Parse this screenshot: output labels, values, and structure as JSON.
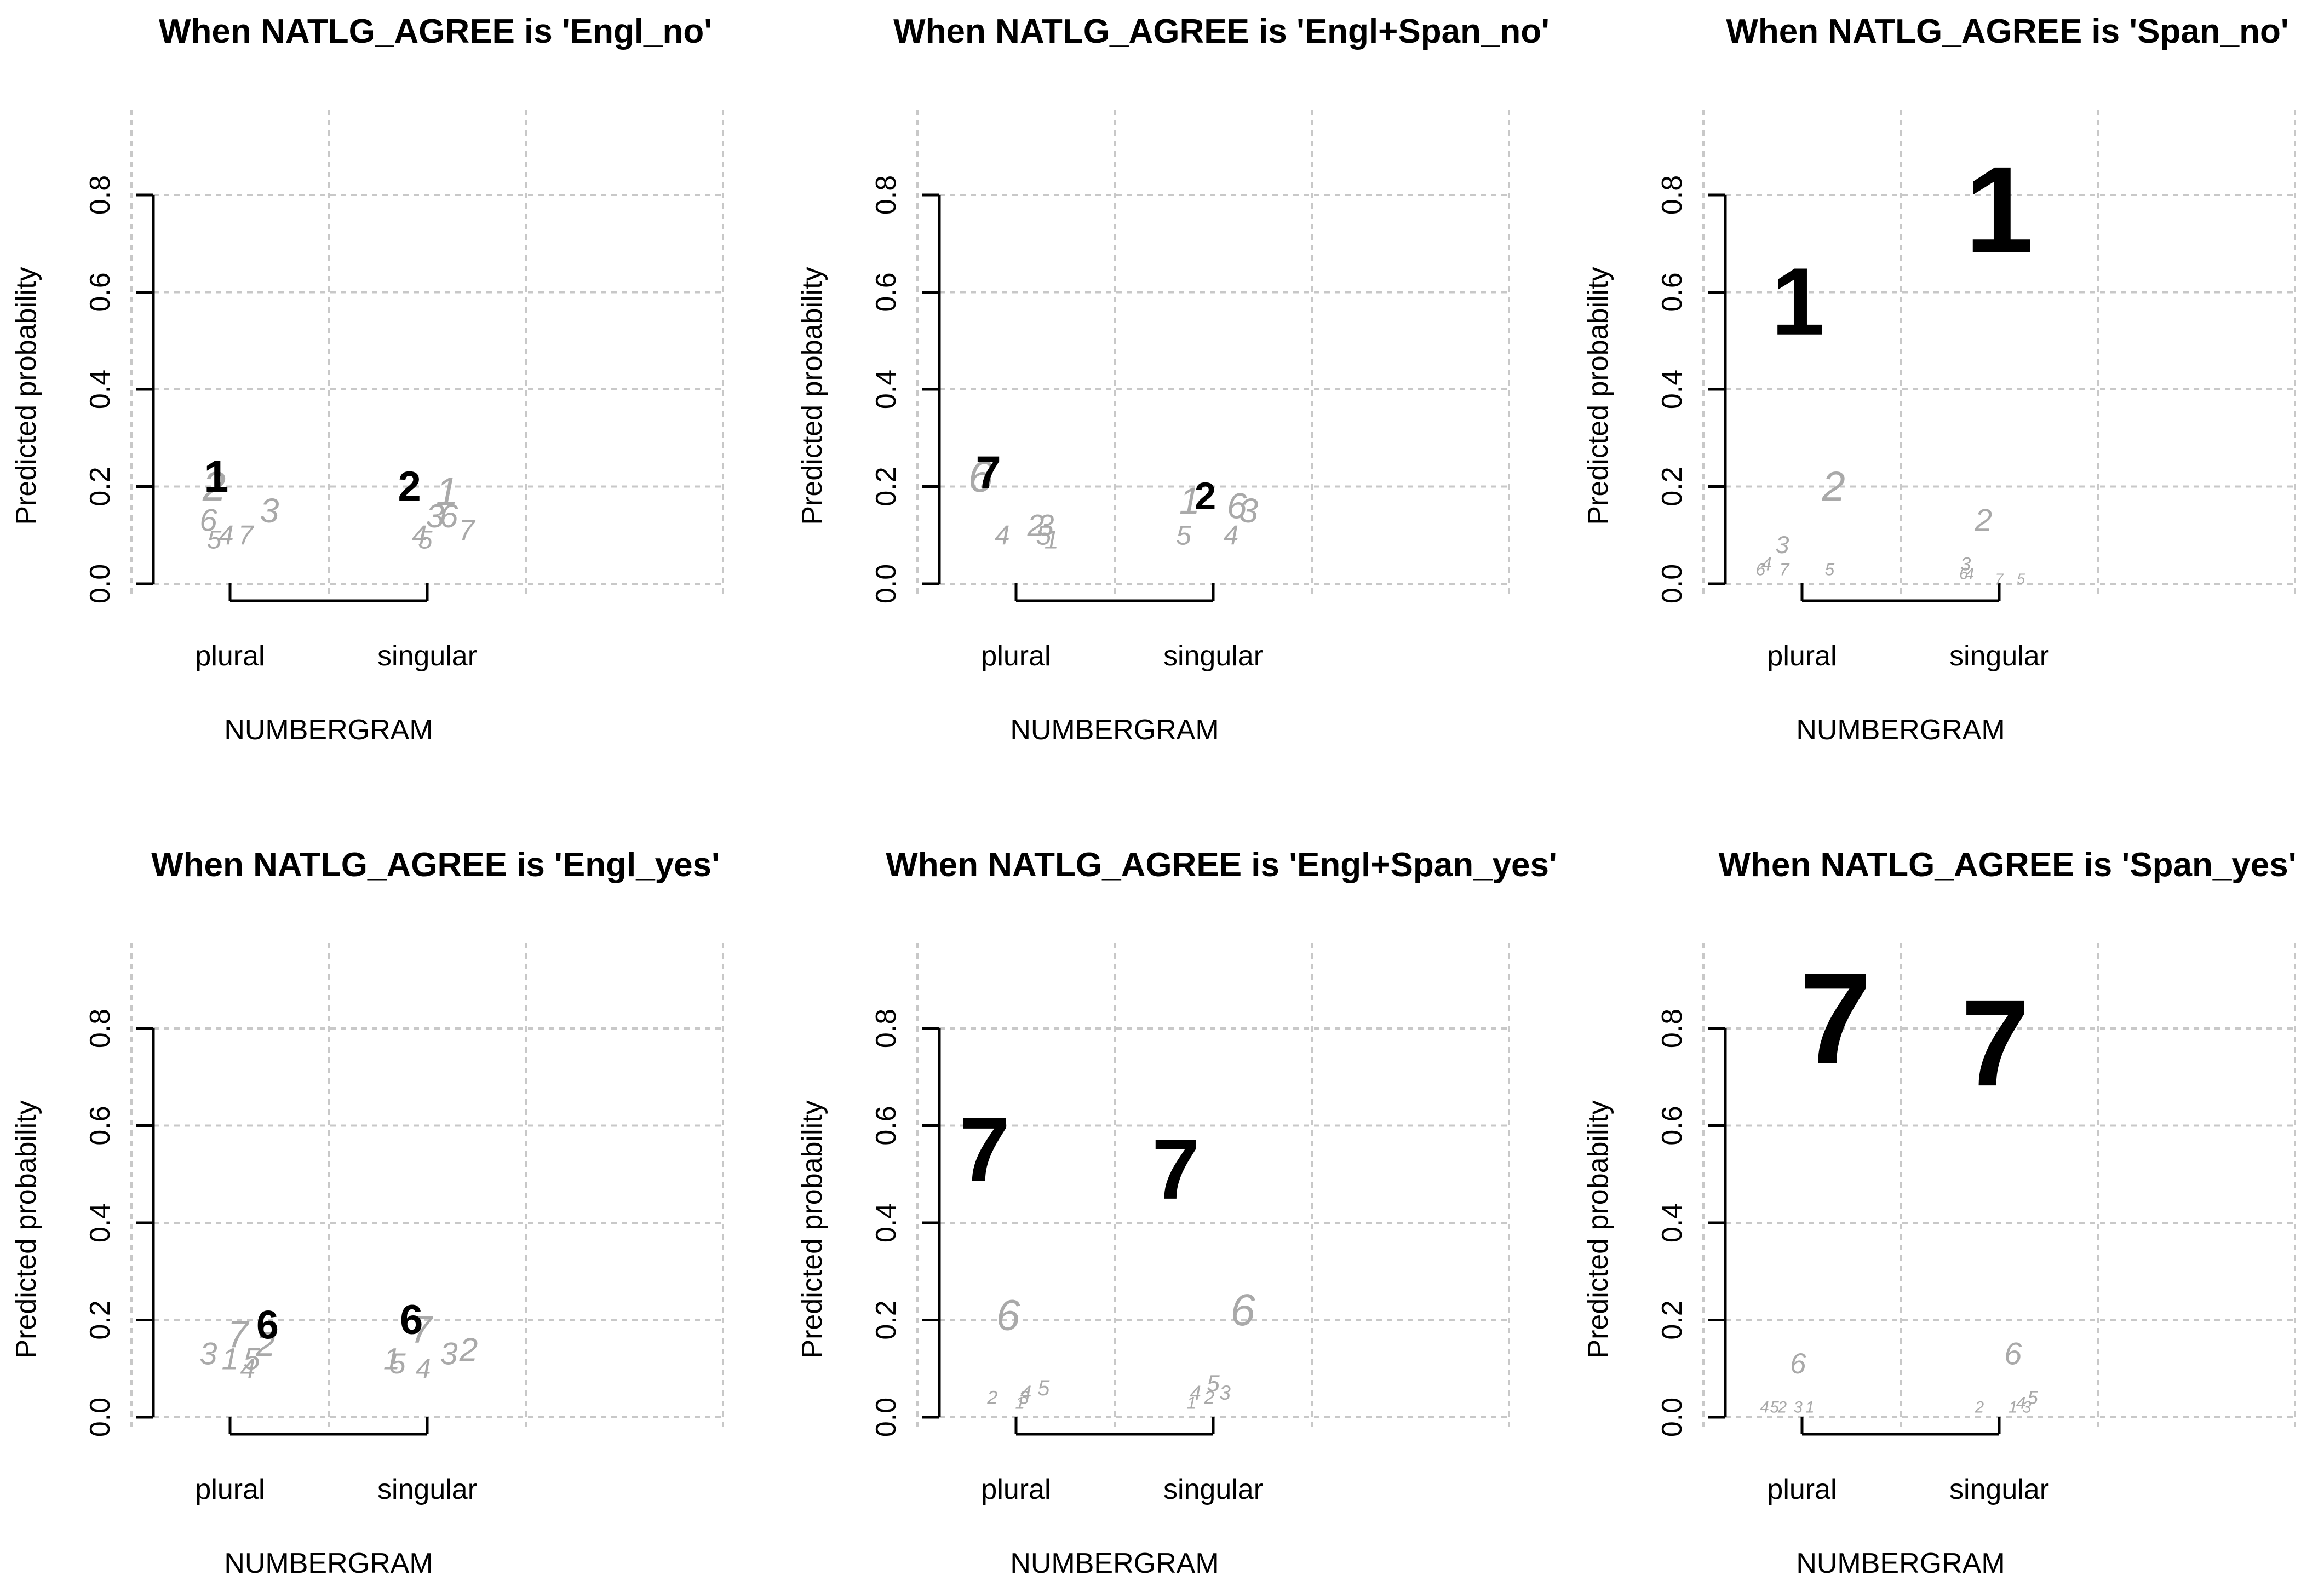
{
  "chart_data": [
    {
      "type": "scatter",
      "title": "When NATLG_AGREE is 'Engl_no'",
      "xlabel": "NUMBERGRAM",
      "ylabel": "Predicted probability",
      "categories": [
        "plural",
        "singular"
      ],
      "ylim": [
        0.0,
        0.8
      ],
      "yticks": [
        "0.0",
        "0.2",
        "0.4",
        "0.6",
        "0.8"
      ],
      "grid": true,
      "points": [
        {
          "label": "1",
          "category": "plural",
          "offset": -0.07,
          "y": 0.22,
          "emphasis": true
        },
        {
          "label": "2",
          "category": "plural",
          "offset": -0.08,
          "y": 0.2,
          "emphasis": false
        },
        {
          "label": "6",
          "category": "plural",
          "offset": -0.11,
          "y": 0.13,
          "emphasis": false
        },
        {
          "label": "5",
          "category": "plural",
          "offset": -0.08,
          "y": 0.09,
          "emphasis": false
        },
        {
          "label": "4",
          "category": "plural",
          "offset": -0.02,
          "y": 0.1,
          "emphasis": false
        },
        {
          "label": "7",
          "category": "plural",
          "offset": 0.08,
          "y": 0.1,
          "emphasis": false
        },
        {
          "label": "3",
          "category": "plural",
          "offset": 0.2,
          "y": 0.15,
          "emphasis": false
        },
        {
          "label": "2",
          "category": "singular",
          "offset": -0.09,
          "y": 0.2,
          "emphasis": true
        },
        {
          "label": "1",
          "category": "singular",
          "offset": 0.1,
          "y": 0.19,
          "emphasis": false
        },
        {
          "label": "3",
          "category": "singular",
          "offset": 0.04,
          "y": 0.14,
          "emphasis": false
        },
        {
          "label": "6",
          "category": "singular",
          "offset": 0.11,
          "y": 0.14,
          "emphasis": false
        },
        {
          "label": "4",
          "category": "singular",
          "offset": -0.04,
          "y": 0.1,
          "emphasis": false
        },
        {
          "label": "5",
          "category": "singular",
          "offset": -0.01,
          "y": 0.09,
          "emphasis": false
        },
        {
          "label": "7",
          "category": "singular",
          "offset": 0.2,
          "y": 0.11,
          "emphasis": false
        }
      ]
    },
    {
      "type": "scatter",
      "title": "When NATLG_AGREE is 'Engl+Span_no'",
      "xlabel": "NUMBERGRAM",
      "ylabel": "Predicted probability",
      "categories": [
        "plural",
        "singular"
      ],
      "ylim": [
        0.0,
        0.8
      ],
      "yticks": [
        "0.0",
        "0.2",
        "0.4",
        "0.6",
        "0.8"
      ],
      "grid": true,
      "points": [
        {
          "label": "7",
          "category": "plural",
          "offset": -0.14,
          "y": 0.23,
          "emphasis": true
        },
        {
          "label": "6",
          "category": "plural",
          "offset": -0.18,
          "y": 0.22,
          "emphasis": false
        },
        {
          "label": "4",
          "category": "plural",
          "offset": -0.07,
          "y": 0.1,
          "emphasis": false
        },
        {
          "label": "2",
          "category": "plural",
          "offset": 0.1,
          "y": 0.12,
          "emphasis": false
        },
        {
          "label": "3",
          "category": "plural",
          "offset": 0.15,
          "y": 0.12,
          "emphasis": false
        },
        {
          "label": "5",
          "category": "plural",
          "offset": 0.14,
          "y": 0.1,
          "emphasis": false
        },
        {
          "label": "1",
          "category": "plural",
          "offset": 0.18,
          "y": 0.09,
          "emphasis": false
        },
        {
          "label": "1",
          "category": "singular",
          "offset": -0.12,
          "y": 0.17,
          "emphasis": false
        },
        {
          "label": "2",
          "category": "singular",
          "offset": -0.04,
          "y": 0.18,
          "emphasis": true
        },
        {
          "label": "5",
          "category": "singular",
          "offset": -0.15,
          "y": 0.1,
          "emphasis": false
        },
        {
          "label": "6",
          "category": "singular",
          "offset": 0.12,
          "y": 0.16,
          "emphasis": false
        },
        {
          "label": "3",
          "category": "singular",
          "offset": 0.18,
          "y": 0.15,
          "emphasis": false
        },
        {
          "label": "4",
          "category": "singular",
          "offset": 0.09,
          "y": 0.1,
          "emphasis": false
        }
      ]
    },
    {
      "type": "scatter",
      "title": "When NATLG_AGREE is 'Span_no'",
      "xlabel": "NUMBERGRAM",
      "ylabel": "Predicted probability",
      "categories": [
        "plural",
        "singular"
      ],
      "ylim": [
        0.0,
        0.8
      ],
      "yticks": [
        "0.0",
        "0.2",
        "0.4",
        "0.6",
        "0.8"
      ],
      "grid": true,
      "points": [
        {
          "label": "1",
          "category": "plural",
          "offset": -0.02,
          "y": 0.58,
          "emphasis": true
        },
        {
          "label": "2",
          "category": "plural",
          "offset": 0.16,
          "y": 0.2,
          "emphasis": false
        },
        {
          "label": "3",
          "category": "plural",
          "offset": -0.1,
          "y": 0.08,
          "emphasis": false
        },
        {
          "label": "6",
          "category": "plural",
          "offset": -0.21,
          "y": 0.03,
          "emphasis": false
        },
        {
          "label": "4",
          "category": "plural",
          "offset": -0.18,
          "y": 0.04,
          "emphasis": false
        },
        {
          "label": "7",
          "category": "plural",
          "offset": -0.09,
          "y": 0.03,
          "emphasis": false
        },
        {
          "label": "5",
          "category": "plural",
          "offset": 0.14,
          "y": 0.03,
          "emphasis": false
        },
        {
          "label": "1",
          "category": "singular",
          "offset": 0.0,
          "y": 0.77,
          "emphasis": true
        },
        {
          "label": "2",
          "category": "singular",
          "offset": -0.08,
          "y": 0.13,
          "emphasis": false
        },
        {
          "label": "3",
          "category": "singular",
          "offset": -0.17,
          "y": 0.04,
          "emphasis": false
        },
        {
          "label": "6",
          "category": "singular",
          "offset": -0.18,
          "y": 0.02,
          "emphasis": false
        },
        {
          "label": "4",
          "category": "singular",
          "offset": -0.15,
          "y": 0.02,
          "emphasis": false
        },
        {
          "label": "7",
          "category": "singular",
          "offset": 0.0,
          "y": 0.01,
          "emphasis": false
        },
        {
          "label": "5",
          "category": "singular",
          "offset": 0.11,
          "y": 0.01,
          "emphasis": false
        }
      ]
    },
    {
      "type": "scatter",
      "title": "When NATLG_AGREE is 'Engl_yes'",
      "xlabel": "NUMBERGRAM",
      "ylabel": "Predicted probability",
      "categories": [
        "plural",
        "singular"
      ],
      "ylim": [
        0.0,
        0.8
      ],
      "yticks": [
        "0.0",
        "0.2",
        "0.4",
        "0.6",
        "0.8"
      ],
      "grid": true,
      "points": [
        {
          "label": "6",
          "category": "plural",
          "offset": 0.19,
          "y": 0.19,
          "emphasis": true
        },
        {
          "label": "7",
          "category": "plural",
          "offset": 0.04,
          "y": 0.17,
          "emphasis": false
        },
        {
          "label": "2",
          "category": "plural",
          "offset": 0.18,
          "y": 0.15,
          "emphasis": false
        },
        {
          "label": "3",
          "category": "plural",
          "offset": -0.11,
          "y": 0.13,
          "emphasis": false
        },
        {
          "label": "1",
          "category": "plural",
          "offset": 0.0,
          "y": 0.12,
          "emphasis": false
        },
        {
          "label": "5",
          "category": "plural",
          "offset": 0.11,
          "y": 0.12,
          "emphasis": false
        },
        {
          "label": "4",
          "category": "plural",
          "offset": 0.09,
          "y": 0.1,
          "emphasis": false
        },
        {
          "label": "6",
          "category": "singular",
          "offset": -0.08,
          "y": 0.2,
          "emphasis": true
        },
        {
          "label": "7",
          "category": "singular",
          "offset": -0.03,
          "y": 0.18,
          "emphasis": false
        },
        {
          "label": "3",
          "category": "singular",
          "offset": 0.11,
          "y": 0.13,
          "emphasis": false
        },
        {
          "label": "2",
          "category": "singular",
          "offset": 0.21,
          "y": 0.14,
          "emphasis": false
        },
        {
          "label": "1",
          "category": "singular",
          "offset": -0.18,
          "y": 0.12,
          "emphasis": false
        },
        {
          "label": "5",
          "category": "singular",
          "offset": -0.15,
          "y": 0.11,
          "emphasis": false
        },
        {
          "label": "4",
          "category": "singular",
          "offset": -0.02,
          "y": 0.1,
          "emphasis": false
        }
      ]
    },
    {
      "type": "scatter",
      "title": "When NATLG_AGREE is 'Engl+Span_yes'",
      "xlabel": "NUMBERGRAM",
      "ylabel": "Predicted probability",
      "categories": [
        "plural",
        "singular"
      ],
      "ylim": [
        0.0,
        0.8
      ],
      "yticks": [
        "0.0",
        "0.2",
        "0.4",
        "0.6",
        "0.8"
      ],
      "grid": true,
      "points": [
        {
          "label": "7",
          "category": "plural",
          "offset": -0.16,
          "y": 0.55,
          "emphasis": true
        },
        {
          "label": "6",
          "category": "plural",
          "offset": -0.04,
          "y": 0.21,
          "emphasis": false
        },
        {
          "label": "2",
          "category": "plural",
          "offset": -0.12,
          "y": 0.04,
          "emphasis": false
        },
        {
          "label": "1",
          "category": "plural",
          "offset": 0.02,
          "y": 0.03,
          "emphasis": false
        },
        {
          "label": "3",
          "category": "plural",
          "offset": 0.04,
          "y": 0.04,
          "emphasis": false
        },
        {
          "label": "4",
          "category": "plural",
          "offset": 0.05,
          "y": 0.05,
          "emphasis": false
        },
        {
          "label": "5",
          "category": "plural",
          "offset": 0.14,
          "y": 0.06,
          "emphasis": false
        },
        {
          "label": "7",
          "category": "singular",
          "offset": -0.19,
          "y": 0.51,
          "emphasis": true
        },
        {
          "label": "6",
          "category": "singular",
          "offset": 0.15,
          "y": 0.22,
          "emphasis": false
        },
        {
          "label": "5",
          "category": "singular",
          "offset": 0.0,
          "y": 0.07,
          "emphasis": false
        },
        {
          "label": "4",
          "category": "singular",
          "offset": -0.09,
          "y": 0.05,
          "emphasis": false
        },
        {
          "label": "2",
          "category": "singular",
          "offset": -0.02,
          "y": 0.04,
          "emphasis": false
        },
        {
          "label": "3",
          "category": "singular",
          "offset": 0.06,
          "y": 0.05,
          "emphasis": false
        },
        {
          "label": "1",
          "category": "singular",
          "offset": -0.11,
          "y": 0.03,
          "emphasis": false
        }
      ]
    },
    {
      "type": "scatter",
      "title": "When NATLG_AGREE is 'Span_yes'",
      "xlabel": "NUMBERGRAM",
      "ylabel": "Predicted probability",
      "categories": [
        "plural",
        "singular"
      ],
      "ylim": [
        0.0,
        0.8
      ],
      "yticks": [
        "0.0",
        "0.2",
        "0.4",
        "0.6",
        "0.8"
      ],
      "grid": true,
      "points": [
        {
          "label": "7",
          "category": "plural",
          "offset": 0.17,
          "y": 0.82,
          "emphasis": true
        },
        {
          "label": "6",
          "category": "plural",
          "offset": -0.02,
          "y": 0.11,
          "emphasis": false
        },
        {
          "label": "4",
          "category": "plural",
          "offset": -0.19,
          "y": 0.02,
          "emphasis": false
        },
        {
          "label": "5",
          "category": "plural",
          "offset": -0.14,
          "y": 0.02,
          "emphasis": false
        },
        {
          "label": "2",
          "category": "plural",
          "offset": -0.1,
          "y": 0.02,
          "emphasis": false
        },
        {
          "label": "3",
          "category": "plural",
          "offset": -0.02,
          "y": 0.02,
          "emphasis": false
        },
        {
          "label": "1",
          "category": "plural",
          "offset": 0.04,
          "y": 0.02,
          "emphasis": false
        },
        {
          "label": "7",
          "category": "singular",
          "offset": -0.02,
          "y": 0.77,
          "emphasis": true
        },
        {
          "label": "6",
          "category": "singular",
          "offset": 0.07,
          "y": 0.13,
          "emphasis": false
        },
        {
          "label": "2",
          "category": "singular",
          "offset": -0.1,
          "y": 0.02,
          "emphasis": false
        },
        {
          "label": "1",
          "category": "singular",
          "offset": 0.07,
          "y": 0.02,
          "emphasis": false
        },
        {
          "label": "4",
          "category": "singular",
          "offset": 0.11,
          "y": 0.03,
          "emphasis": false
        },
        {
          "label": "3",
          "category": "singular",
          "offset": 0.14,
          "y": 0.02,
          "emphasis": false
        },
        {
          "label": "5",
          "category": "singular",
          "offset": 0.17,
          "y": 0.04,
          "emphasis": false
        }
      ]
    }
  ]
}
